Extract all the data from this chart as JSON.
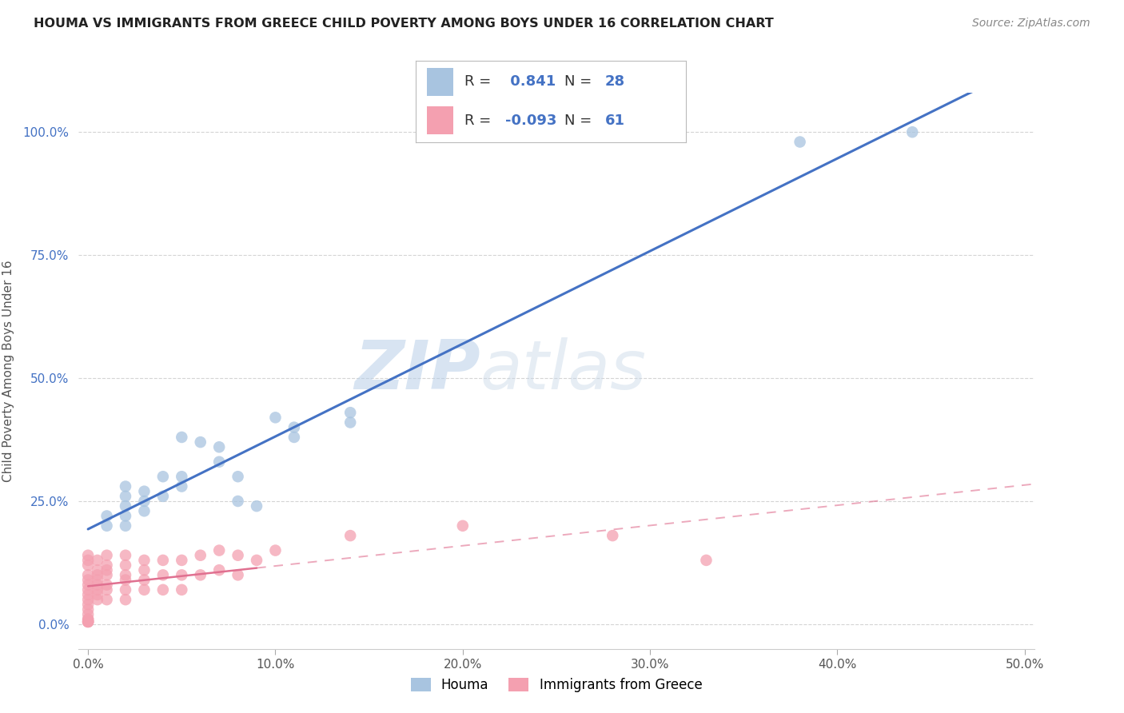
{
  "title": "HOUMA VS IMMIGRANTS FROM GREECE CHILD POVERTY AMONG BOYS UNDER 16 CORRELATION CHART",
  "source": "Source: ZipAtlas.com",
  "ylabel": "Child Poverty Among Boys Under 16",
  "xlim": [
    -0.005,
    0.505
  ],
  "ylim": [
    -0.05,
    1.08
  ],
  "xticks": [
    0.0,
    0.1,
    0.2,
    0.3,
    0.4,
    0.5
  ],
  "yticks": [
    0.0,
    0.25,
    0.5,
    0.75,
    1.0
  ],
  "xtick_labels": [
    "0.0%",
    "10.0%",
    "20.0%",
    "30.0%",
    "40.0%",
    "50.0%"
  ],
  "ytick_labels": [
    "0.0%",
    "25.0%",
    "50.0%",
    "75.0%",
    "100.0%"
  ],
  "houma_R": 0.841,
  "houma_N": 28,
  "greece_R": -0.093,
  "greece_N": 61,
  "houma_color": "#a8c4e0",
  "greece_color": "#f4a0b0",
  "houma_line_color": "#4472c4",
  "greece_line_color": "#e07090",
  "watermark_zip": "ZIP",
  "watermark_atlas": "atlas",
  "houma_points_x": [
    0.01,
    0.01,
    0.02,
    0.02,
    0.02,
    0.02,
    0.02,
    0.03,
    0.03,
    0.03,
    0.04,
    0.04,
    0.05,
    0.05,
    0.05,
    0.06,
    0.07,
    0.07,
    0.08,
    0.08,
    0.09,
    0.1,
    0.11,
    0.11,
    0.14,
    0.14,
    0.38,
    0.44
  ],
  "houma_points_y": [
    0.22,
    0.2,
    0.28,
    0.26,
    0.24,
    0.22,
    0.2,
    0.27,
    0.25,
    0.23,
    0.3,
    0.26,
    0.3,
    0.28,
    0.38,
    0.37,
    0.36,
    0.33,
    0.3,
    0.25,
    0.24,
    0.42,
    0.4,
    0.38,
    0.43,
    0.41,
    0.98,
    1.0
  ],
  "greece_points_x": [
    0.0,
    0.0,
    0.0,
    0.0,
    0.0,
    0.0,
    0.0,
    0.0,
    0.0,
    0.0,
    0.0,
    0.0,
    0.0,
    0.0,
    0.0,
    0.0,
    0.0,
    0.0,
    0.005,
    0.005,
    0.005,
    0.005,
    0.005,
    0.005,
    0.005,
    0.005,
    0.01,
    0.01,
    0.01,
    0.01,
    0.01,
    0.01,
    0.01,
    0.02,
    0.02,
    0.02,
    0.02,
    0.02,
    0.02,
    0.03,
    0.03,
    0.03,
    0.03,
    0.04,
    0.04,
    0.04,
    0.05,
    0.05,
    0.05,
    0.06,
    0.06,
    0.07,
    0.07,
    0.08,
    0.08,
    0.09,
    0.1,
    0.14,
    0.2,
    0.28,
    0.33
  ],
  "greece_points_y": [
    0.14,
    0.13,
    0.12,
    0.1,
    0.09,
    0.08,
    0.07,
    0.06,
    0.05,
    0.04,
    0.03,
    0.02,
    0.01,
    0.01,
    0.005,
    0.005,
    0.005,
    0.005,
    0.13,
    0.11,
    0.1,
    0.09,
    0.08,
    0.07,
    0.06,
    0.05,
    0.14,
    0.12,
    0.11,
    0.1,
    0.08,
    0.07,
    0.05,
    0.14,
    0.12,
    0.1,
    0.09,
    0.07,
    0.05,
    0.13,
    0.11,
    0.09,
    0.07,
    0.13,
    0.1,
    0.07,
    0.13,
    0.1,
    0.07,
    0.14,
    0.1,
    0.15,
    0.11,
    0.14,
    0.1,
    0.13,
    0.15,
    0.18,
    0.2,
    0.18,
    0.13
  ],
  "background_color": "#ffffff",
  "grid_color": "#d0d0d0"
}
